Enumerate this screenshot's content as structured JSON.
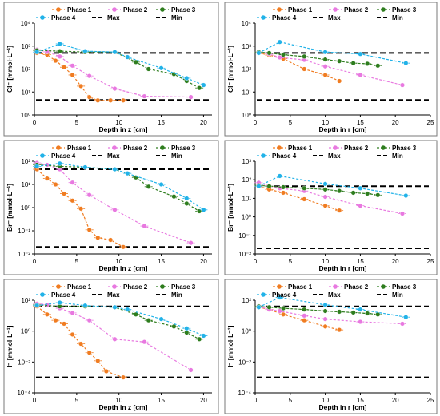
{
  "legend": {
    "phase1": "Phase 1",
    "phase2": "Phase 2",
    "phase3": "Phase 3",
    "phase4": "Phase 4",
    "max": "Max",
    "min": "Min"
  },
  "colors": {
    "Phase 1": "#f07c21",
    "Phase 2": "#e879e0",
    "Phase 3": "#2e7d1e",
    "Phase 4": "#21b2e8",
    "limits": "#000000"
  },
  "chart_data": [
    {
      "type": "line",
      "panel": "top-left",
      "yscale": "log",
      "xlabel": "Depth in z [cm]",
      "ylabel": "Cl⁻ [mmol·L⁻¹]",
      "xlim": [
        0,
        21
      ],
      "ylim": [
        1,
        10000
      ],
      "xticks": [
        "0",
        "5",
        "10",
        "15",
        "20"
      ],
      "yticks": [
        "10⁰",
        "10¹",
        "10²",
        "10³",
        "10⁴"
      ],
      "series": [
        {
          "name": "Phase 1",
          "points": [
            [
              0.3,
              500
            ],
            [
              1.5,
              420
            ],
            [
              2.5,
              230
            ],
            [
              3.5,
              120
            ],
            [
              4.5,
              55
            ],
            [
              5.5,
              18
            ],
            [
              6.5,
              6
            ],
            [
              7.5,
              4.3
            ],
            [
              9,
              4.3
            ],
            [
              10.5,
              4.3
            ]
          ]
        },
        {
          "name": "Phase 2",
          "points": [
            [
              0.3,
              700
            ],
            [
              1.5,
              560
            ],
            [
              3,
              350
            ],
            [
              4.5,
              140
            ],
            [
              6.5,
              50
            ],
            [
              9.5,
              14
            ],
            [
              13,
              6.5
            ],
            [
              18.5,
              6
            ]
          ]
        },
        {
          "name": "Phase 3",
          "points": [
            [
              0.3,
              650
            ],
            [
              3,
              600
            ],
            [
              6,
              550
            ],
            [
              9.5,
              550
            ],
            [
              12,
              200
            ],
            [
              13.5,
              100
            ],
            [
              16.5,
              60
            ],
            [
              18,
              30
            ],
            [
              19.5,
              15
            ]
          ]
        },
        {
          "name": "Phase 4",
          "points": [
            [
              0.3,
              550
            ],
            [
              3,
              1250
            ],
            [
              6,
              600
            ],
            [
              9.5,
              550
            ],
            [
              11,
              330
            ],
            [
              15,
              110
            ],
            [
              18,
              40
            ],
            [
              20,
              20
            ]
          ]
        },
        {
          "name": "Max",
          "constant": 500
        },
        {
          "name": "Min",
          "constant": 4.5
        }
      ]
    },
    {
      "type": "line",
      "panel": "top-right",
      "yscale": "log",
      "xlabel": "Depth in r [cm]",
      "ylabel": "Cl⁻ [mmol·L⁻¹]",
      "xlim": [
        0,
        25
      ],
      "ylim": [
        1,
        10000
      ],
      "xticks": [
        "0",
        "5",
        "10",
        "15",
        "20",
        "25"
      ],
      "yticks": [
        "10⁰",
        "10¹",
        "10²",
        "10³",
        "10⁴"
      ],
      "series": [
        {
          "name": "Phase 1",
          "points": [
            [
              0.5,
              500
            ],
            [
              2,
              400
            ],
            [
              4,
              280
            ],
            [
              7,
              100
            ],
            [
              10,
              55
            ],
            [
              12,
              30
            ]
          ]
        },
        {
          "name": "Phase 2",
          "points": [
            [
              0.5,
              550
            ],
            [
              2,
              450
            ],
            [
              3.5,
              320
            ],
            [
              7,
              250
            ],
            [
              10,
              130
            ],
            [
              15,
              55
            ],
            [
              21,
              20
            ]
          ]
        },
        {
          "name": "Phase 3",
          "points": [
            [
              0.5,
              550
            ],
            [
              2,
              500
            ],
            [
              4,
              420
            ],
            [
              7,
              350
            ],
            [
              10,
              260
            ],
            [
              12,
              220
            ],
            [
              14,
              180
            ],
            [
              16,
              170
            ],
            [
              17.5,
              140
            ]
          ]
        },
        {
          "name": "Phase 4",
          "points": [
            [
              0.5,
              500
            ],
            [
              3.5,
              1500
            ],
            [
              10,
              550
            ],
            [
              15,
              450
            ],
            [
              21.5,
              180
            ]
          ]
        },
        {
          "name": "Max",
          "constant": 500
        },
        {
          "name": "Min",
          "constant": 4.5
        }
      ]
    },
    {
      "type": "line",
      "panel": "middle-left",
      "yscale": "log",
      "xlabel": "Depth in z [cm]",
      "ylabel": "Br⁻ [mmol·L⁻¹]",
      "xlim": [
        0,
        21
      ],
      "ylim": [
        0.01,
        100
      ],
      "xticks": [
        "0",
        "5",
        "10",
        "15",
        "20"
      ],
      "yticks": [
        "10⁻²",
        "10⁻¹",
        "10⁰",
        "10¹",
        "10²"
      ],
      "series": [
        {
          "name": "Phase 1",
          "points": [
            [
              0.3,
              45
            ],
            [
              1.5,
              18
            ],
            [
              2.5,
              10
            ],
            [
              3.5,
              4
            ],
            [
              4.5,
              2
            ],
            [
              5.5,
              0.9
            ],
            [
              6.5,
              0.11
            ],
            [
              7.5,
              0.05
            ],
            [
              9,
              0.04
            ],
            [
              10.5,
              0.02
            ]
          ]
        },
        {
          "name": "Phase 2",
          "points": [
            [
              0.3,
              85
            ],
            [
              1.5,
              70
            ],
            [
              3,
              45
            ],
            [
              4.5,
              12
            ],
            [
              6.5,
              3.5
            ],
            [
              9.5,
              0.8
            ],
            [
              13,
              0.16
            ],
            [
              18.5,
              0.03
            ]
          ]
        },
        {
          "name": "Phase 3",
          "points": [
            [
              0.3,
              70
            ],
            [
              3,
              60
            ],
            [
              6,
              55
            ],
            [
              9.5,
              45
            ],
            [
              12,
              20
            ],
            [
              13.5,
              8
            ],
            [
              16.5,
              3
            ],
            [
              18,
              1.5
            ],
            [
              19.5,
              0.7
            ]
          ]
        },
        {
          "name": "Phase 4",
          "points": [
            [
              0.3,
              60
            ],
            [
              3,
              80
            ],
            [
              6,
              55
            ],
            [
              9.5,
              45
            ],
            [
              11,
              30
            ],
            [
              15,
              10
            ],
            [
              18,
              2.5
            ],
            [
              20,
              0.8
            ]
          ]
        },
        {
          "name": "Max",
          "constant": 45
        },
        {
          "name": "Min",
          "constant": 0.02
        }
      ]
    },
    {
      "type": "line",
      "panel": "middle-right",
      "yscale": "log",
      "xlabel": "Depth in r [cm]",
      "ylabel": "Br⁻ [mmol·L⁻¹]",
      "xlim": [
        0,
        25
      ],
      "ylim": [
        0.01,
        1000
      ],
      "xticks": [
        "0",
        "5",
        "10",
        "15",
        "20",
        "25"
      ],
      "yticks": [
        "10⁻²",
        "10⁻¹",
        "10⁰",
        "10¹",
        "10²",
        "10³"
      ],
      "series": [
        {
          "name": "Phase 1",
          "points": [
            [
              0.5,
              45
            ],
            [
              2,
              30
            ],
            [
              4,
              20
            ],
            [
              7,
              9
            ],
            [
              10,
              4
            ],
            [
              12,
              2.2
            ]
          ]
        },
        {
          "name": "Phase 2",
          "points": [
            [
              0.5,
              70
            ],
            [
              2,
              45
            ],
            [
              3.5,
              35
            ],
            [
              7,
              25
            ],
            [
              10,
              12
            ],
            [
              15,
              4
            ],
            [
              21,
              1.5
            ]
          ]
        },
        {
          "name": "Phase 3",
          "points": [
            [
              0.5,
              50
            ],
            [
              2,
              45
            ],
            [
              4,
              40
            ],
            [
              7,
              35
            ],
            [
              10,
              30
            ],
            [
              12,
              25
            ],
            [
              14,
              20
            ],
            [
              16,
              18
            ],
            [
              17.5,
              15
            ]
          ]
        },
        {
          "name": "Phase 4",
          "points": [
            [
              0.5,
              45
            ],
            [
              3.5,
              160
            ],
            [
              10,
              60
            ],
            [
              15,
              35
            ],
            [
              21.5,
              14
            ]
          ]
        },
        {
          "name": "Max",
          "constant": 45
        },
        {
          "name": "Min",
          "constant": 0.02
        }
      ]
    },
    {
      "type": "line",
      "panel": "bottom-left",
      "yscale": "log",
      "xlabel": "Depth in z [cm]",
      "ylabel": "I⁻ [mmol·L⁻¹]",
      "xlim": [
        0,
        21
      ],
      "ylim": [
        0.0001,
        100
      ],
      "xticks": [
        "0",
        "5",
        "10",
        "15",
        "20"
      ],
      "yticks": [
        "10⁻⁴",
        "10⁻²",
        "10⁰",
        "10²"
      ],
      "series": [
        {
          "name": "Phase 1",
          "points": [
            [
              0.3,
              40
            ],
            [
              1.5,
              12
            ],
            [
              2.5,
              5
            ],
            [
              3.5,
              3
            ],
            [
              4.5,
              0.6
            ],
            [
              5.5,
              0.15
            ],
            [
              6.5,
              0.04
            ],
            [
              7.5,
              0.012
            ],
            [
              8.5,
              0.0025
            ],
            [
              10.5,
              0.001
            ]
          ]
        },
        {
          "name": "Phase 2",
          "points": [
            [
              0.3,
              60
            ],
            [
              1.5,
              50
            ],
            [
              3,
              30
            ],
            [
              4.5,
              15
            ],
            [
              6.5,
              5
            ],
            [
              9.5,
              0.3
            ],
            [
              13,
              0.2
            ],
            [
              18.5,
              0.003
            ]
          ]
        },
        {
          "name": "Phase 3",
          "points": [
            [
              0.3,
              50
            ],
            [
              3,
              40
            ],
            [
              6,
              40
            ],
            [
              9.5,
              35
            ],
            [
              12,
              12
            ],
            [
              13.5,
              5
            ],
            [
              16.5,
              2
            ],
            [
              18,
              0.8
            ],
            [
              19.5,
              0.3
            ]
          ]
        },
        {
          "name": "Phase 4",
          "points": [
            [
              0.3,
              45
            ],
            [
              3,
              70
            ],
            [
              6,
              45
            ],
            [
              9.5,
              35
            ],
            [
              11,
              25
            ],
            [
              15,
              6
            ],
            [
              18,
              1.5
            ],
            [
              20,
              0.5
            ]
          ]
        },
        {
          "name": "Max",
          "constant": 40
        },
        {
          "name": "Min",
          "constant": 0.001
        }
      ]
    },
    {
      "type": "line",
      "panel": "bottom-right",
      "yscale": "log",
      "xlabel": "Depth in r [cm]",
      "ylabel": "I⁻ [mmol·L⁻¹]",
      "xlim": [
        0,
        25
      ],
      "ylim": [
        0.0001,
        100
      ],
      "xticks": [
        "0",
        "5",
        "10",
        "15",
        "20",
        "25"
      ],
      "yticks": [
        "10⁻⁴",
        "10⁻²",
        "10⁰",
        "10²"
      ],
      "series": [
        {
          "name": "Phase 1",
          "points": [
            [
              0.5,
              35
            ],
            [
              2,
              25
            ],
            [
              4,
              12
            ],
            [
              7,
              5
            ],
            [
              10,
              2
            ],
            [
              12,
              1.2
            ]
          ]
        },
        {
          "name": "Phase 2",
          "points": [
            [
              0.5,
              40
            ],
            [
              2,
              25
            ],
            [
              3.5,
              20
            ],
            [
              7,
              10
            ],
            [
              10,
              6
            ],
            [
              15,
              4
            ],
            [
              21,
              3
            ]
          ]
        },
        {
          "name": "Phase 3",
          "points": [
            [
              0.5,
              40
            ],
            [
              2,
              35
            ],
            [
              4,
              30
            ],
            [
              7,
              25
            ],
            [
              10,
              20
            ],
            [
              12,
              18
            ],
            [
              14,
              16
            ],
            [
              16,
              14
            ],
            [
              17.5,
              12
            ]
          ]
        },
        {
          "name": "Phase 4",
          "points": [
            [
              0.5,
              35
            ],
            [
              3.5,
              150
            ],
            [
              10,
              50
            ],
            [
              15,
              25
            ],
            [
              21.5,
              8
            ]
          ]
        },
        {
          "name": "Max",
          "constant": 40
        },
        {
          "name": "Min",
          "constant": 0.001
        }
      ]
    }
  ]
}
